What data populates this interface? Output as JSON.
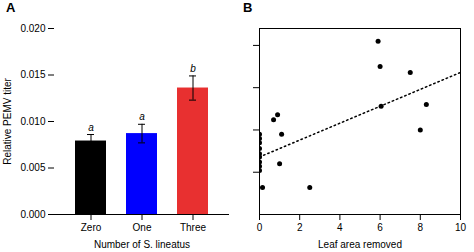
{
  "chart_data": [
    {
      "type": "bar",
      "title": "A",
      "categories": [
        "Zero",
        "One",
        "Three"
      ],
      "values": [
        0.0079,
        0.0087,
        0.0136
      ],
      "errors": [
        0.0007,
        0.001,
        0.0013
      ],
      "colors": [
        "#000000",
        "#0000ff",
        "#e83030"
      ],
      "annotations": [
        "a",
        "a",
        "b"
      ],
      "xlabel": "Number of S. lineatus",
      "ylabel": "Relative PEMV titer",
      "ylim": [
        0.0,
        0.02
      ],
      "yticks": [
        {
          "value": 0,
          "label": "0.000"
        },
        0.005,
        {
          "value": 0.01,
          "label": "0.010"
        },
        0.015,
        {
          "value": 0.02,
          "label": "0.020"
        }
      ]
    },
    {
      "type": "scatter",
      "title": "B",
      "x": [
        0,
        0,
        0,
        0,
        0,
        0,
        0,
        0,
        0,
        0.15,
        0.7,
        0.9,
        1.0,
        1.1,
        2.5,
        5.9,
        6.0,
        6.05,
        7.5,
        8.0,
        8.3
      ],
      "y": [
        0.0085,
        0.0078,
        0.0072,
        0.0068,
        0.0062,
        0.0057,
        0.0052,
        0.009,
        0.0095,
        0.0032,
        0.0112,
        0.0118,
        0.006,
        0.0095,
        0.0032,
        0.0205,
        0.0175,
        0.0128,
        0.0168,
        0.01,
        0.013
      ],
      "color": "#000000",
      "regression_x": [
        0,
        10
      ],
      "regression_y": [
        0.0068,
        0.0168
      ],
      "line_style": "dotted",
      "xlabel": "Leaf area removed",
      "xlim": [
        0,
        10
      ],
      "xticks": [
        0,
        2,
        4,
        6,
        8,
        10
      ],
      "ylim": [
        0.0,
        0.022
      ],
      "yticks": [
        0.005,
        0.01,
        0.015,
        0.02
      ],
      "tick_labels": "x"
    }
  ]
}
